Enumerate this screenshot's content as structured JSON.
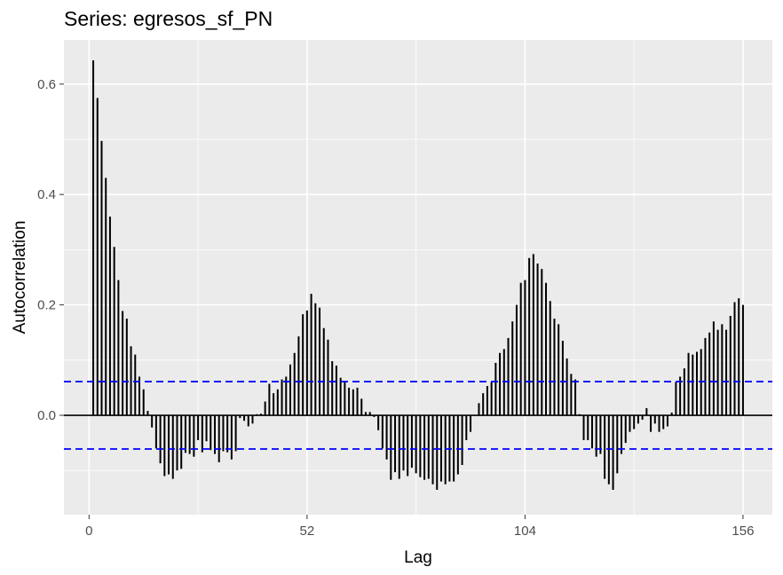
{
  "chart_data": {
    "type": "bar",
    "title": "Series: egresos_sf_PN",
    "xlabel": "Lag",
    "ylabel": "Autocorrelation",
    "x_ticks": [
      "0",
      "52",
      "104",
      "156"
    ],
    "y_ticks": [
      "0.0",
      "0.2",
      "0.4",
      "0.6"
    ],
    "xlim": [
      -6,
      163
    ],
    "ylim": [
      -0.18,
      0.68
    ],
    "confidence_bounds": [
      0.061,
      -0.061
    ],
    "colors": {
      "bars": "#000000",
      "bounds": "#0000ff",
      "panel": "#ebebeb",
      "grid": "#ffffff",
      "zero_line": "#000000"
    },
    "lags": [
      1,
      2,
      3,
      4,
      5,
      6,
      7,
      8,
      9,
      10,
      11,
      12,
      13,
      14,
      15,
      16,
      17,
      18,
      19,
      20,
      21,
      22,
      23,
      24,
      25,
      26,
      27,
      28,
      29,
      30,
      31,
      32,
      33,
      34,
      35,
      36,
      37,
      38,
      39,
      40,
      41,
      42,
      43,
      44,
      45,
      46,
      47,
      48,
      49,
      50,
      51,
      52,
      53,
      54,
      55,
      56,
      57,
      58,
      59,
      60,
      61,
      62,
      63,
      64,
      65,
      66,
      67,
      68,
      69,
      70,
      71,
      72,
      73,
      74,
      75,
      76,
      77,
      78,
      79,
      80,
      81,
      82,
      83,
      84,
      85,
      86,
      87,
      88,
      89,
      90,
      91,
      92,
      93,
      94,
      95,
      96,
      97,
      98,
      99,
      100,
      101,
      102,
      103,
      104,
      105,
      106,
      107,
      108,
      109,
      110,
      111,
      112,
      113,
      114,
      115,
      116,
      117,
      118,
      119,
      120,
      121,
      122,
      123,
      124,
      125,
      126,
      127,
      128,
      129,
      130,
      131,
      132,
      133,
      134,
      135,
      136,
      137,
      138,
      139,
      140,
      141,
      142,
      143,
      144,
      145,
      146,
      147,
      148,
      149,
      150,
      151,
      152,
      153,
      154,
      155,
      156
    ],
    "values": [
      0.643,
      0.575,
      0.497,
      0.43,
      0.36,
      0.305,
      0.245,
      0.189,
      0.175,
      0.125,
      0.11,
      0.07,
      0.047,
      0.008,
      -0.022,
      -0.06,
      -0.087,
      -0.11,
      -0.107,
      -0.115,
      -0.1,
      -0.097,
      -0.068,
      -0.07,
      -0.075,
      -0.045,
      -0.067,
      -0.047,
      -0.063,
      -0.07,
      -0.085,
      -0.065,
      -0.067,
      -0.08,
      -0.065,
      -0.005,
      -0.01,
      -0.02,
      -0.015,
      0.002,
      0.003,
      0.025,
      0.057,
      0.04,
      0.047,
      0.065,
      0.07,
      0.092,
      0.113,
      0.143,
      0.183,
      0.19,
      0.22,
      0.203,
      0.195,
      0.158,
      0.137,
      0.098,
      0.09,
      0.068,
      0.06,
      0.05,
      0.047,
      0.05,
      0.03,
      0.006,
      0.006,
      -0.003,
      -0.027,
      -0.06,
      -0.08,
      -0.117,
      -0.103,
      -0.115,
      -0.1,
      -0.11,
      -0.095,
      -0.105,
      -0.112,
      -0.117,
      -0.115,
      -0.125,
      -0.135,
      -0.12,
      -0.125,
      -0.12,
      -0.12,
      -0.107,
      -0.09,
      -0.045,
      -0.03,
      0.0,
      0.022,
      0.04,
      0.053,
      0.06,
      0.095,
      0.113,
      0.12,
      0.14,
      0.17,
      0.2,
      0.24,
      0.245,
      0.285,
      0.292,
      0.275,
      0.265,
      0.24,
      0.207,
      0.175,
      0.165,
      0.135,
      0.103,
      0.075,
      0.065,
      0.002,
      -0.045,
      -0.045,
      -0.06,
      -0.075,
      -0.07,
      -0.115,
      -0.125,
      -0.135,
      -0.105,
      -0.07,
      -0.05,
      -0.03,
      -0.025,
      -0.015,
      -0.008,
      0.013,
      -0.03,
      -0.015,
      -0.03,
      -0.025,
      -0.02,
      0.005,
      0.06,
      0.07,
      0.085,
      0.113,
      0.11,
      0.115,
      0.12,
      0.14,
      0.15,
      0.17,
      0.155,
      0.165,
      0.155,
      0.18,
      0.205,
      0.212,
      0.2
    ]
  }
}
